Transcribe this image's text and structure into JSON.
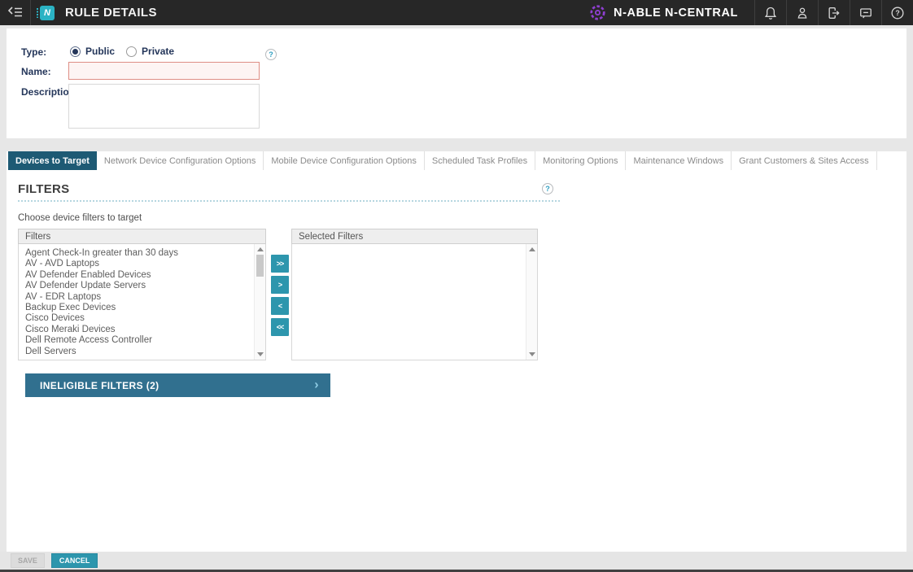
{
  "header": {
    "title": "RULE DETAILS",
    "brand": "N-ABLE N-CENTRAL"
  },
  "icons": {
    "help_glyph": "?",
    "chevron_right_glyph": "›",
    "logo_letter": "N"
  },
  "form": {
    "type_label": "Type:",
    "type_options": [
      {
        "label": "Public",
        "selected": true
      },
      {
        "label": "Private",
        "selected": false
      }
    ],
    "name_label": "Name:",
    "name_value": "",
    "description_label": "Description:",
    "description_value": ""
  },
  "tabs": [
    {
      "label": "Devices to Target",
      "active": true
    },
    {
      "label": "Network Device Configuration Options",
      "active": false
    },
    {
      "label": "Mobile Device Configuration Options",
      "active": false
    },
    {
      "label": "Scheduled Task Profiles",
      "active": false
    },
    {
      "label": "Monitoring Options",
      "active": false
    },
    {
      "label": "Maintenance Windows",
      "active": false
    },
    {
      "label": "Grant Customers & Sites Access",
      "active": false
    }
  ],
  "filters_section": {
    "heading": "FILTERS",
    "instruction": "Choose device filters to target",
    "available_header": "Filters",
    "available_items": [
      "Agent Check-In greater than 30 days",
      "AV - AVD Laptops",
      "AV Defender Enabled Devices",
      "AV Defender Update Servers",
      "AV - EDR Laptops",
      "Backup Exec Devices",
      "Cisco Devices",
      "Cisco Meraki Devices",
      "Dell Remote Access Controller",
      "Dell Servers"
    ],
    "selected_header": "Selected Filters",
    "selected_items": [],
    "transfer_buttons": [
      ">>",
      ">",
      "<",
      "<<"
    ],
    "ineligible_label": "INELIGIBLE FILTERS (2)"
  },
  "footer": {
    "save_label": "SAVE",
    "cancel_label": "CANCEL"
  },
  "colors": {
    "header_bg": "#272727",
    "logo_teal": "#2BB3C4",
    "brand_purple": "#8F3FD1",
    "accent_teal": "#2D96AD",
    "active_tab": "#1E5A74",
    "ineligible_bar": "#31708F",
    "error_border": "#DE8E85"
  }
}
